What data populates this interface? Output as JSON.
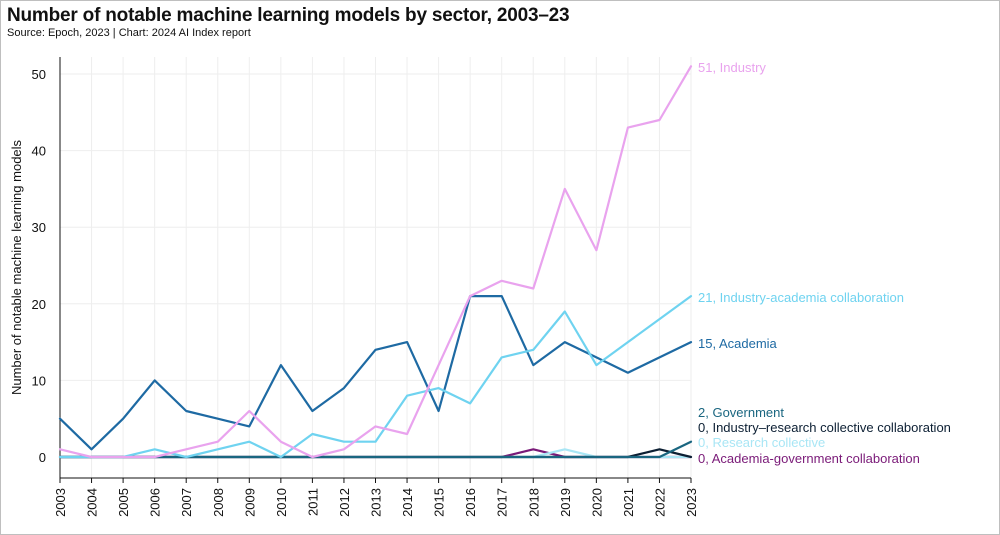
{
  "title": "Number of notable machine learning models by sector, 2003–23",
  "subtitle": "Source: Epoch, 2023 | Chart: 2024 AI Index report",
  "chart_data": {
    "type": "line",
    "ylabel": "Number of notable machine learning models",
    "xlabel": "",
    "ylim": [
      0,
      52
    ],
    "yticks": [
      0,
      10,
      20,
      30,
      40,
      50
    ],
    "x": [
      "2003",
      "2004",
      "2005",
      "2006",
      "2007",
      "2008",
      "2009",
      "2010",
      "2011",
      "2012",
      "2013",
      "2014",
      "2015",
      "2016",
      "2017",
      "2018",
      "2019",
      "2020",
      "2021",
      "2022",
      "2023"
    ],
    "grid": true,
    "legend": "end-labels",
    "series": [
      {
        "name": "Industry",
        "end_label": "51, Industry",
        "color": "#e9a3ee",
        "values": [
          1,
          0,
          0,
          0,
          1,
          2,
          6,
          2,
          0,
          1,
          4,
          3,
          12,
          21,
          23,
          22,
          35,
          27,
          43,
          44,
          51
        ]
      },
      {
        "name": "Industry-academia collaboration",
        "end_label": "21, Industry-academia collaboration",
        "color": "#6fd3f0",
        "values": [
          0,
          0,
          0,
          1,
          0,
          1,
          2,
          0,
          3,
          2,
          2,
          8,
          9,
          7,
          13,
          14,
          19,
          12,
          15,
          18,
          21
        ]
      },
      {
        "name": "Academia",
        "end_label": "15, Academia",
        "color": "#1e6aa3",
        "values": [
          5,
          1,
          5,
          10,
          6,
          5,
          4,
          12,
          6,
          9,
          14,
          15,
          6,
          21,
          21,
          12,
          15,
          13,
          11,
          13,
          15
        ]
      },
      {
        "name": "Government",
        "end_label": "2, Government",
        "color": "#1a6680",
        "values": [
          0,
          0,
          0,
          0,
          0,
          0,
          0,
          0,
          0,
          0,
          0,
          0,
          0,
          0,
          0,
          0,
          0,
          0,
          0,
          0,
          2
        ]
      },
      {
        "name": "Industry–research collective collaboration",
        "end_label": "0, Industry–research collective collaboration",
        "color": "#0c1f33",
        "values": [
          0,
          0,
          0,
          0,
          0,
          0,
          0,
          0,
          0,
          0,
          0,
          0,
          0,
          0,
          0,
          0,
          0,
          0,
          0,
          1,
          0
        ]
      },
      {
        "name": "Research collective",
        "end_label": "0, Research collective",
        "color": "#a9e6f5",
        "values": [
          0,
          0,
          0,
          0,
          0,
          0,
          0,
          0,
          0,
          0,
          0,
          0,
          0,
          0,
          0,
          0,
          1,
          0,
          0,
          0,
          0
        ]
      },
      {
        "name": "Academia-government collaboration",
        "end_label": "0, Academia-government collaboration",
        "color": "#7a1a78",
        "values": [
          0,
          0,
          0,
          0,
          0,
          0,
          0,
          0,
          0,
          0,
          0,
          0,
          0,
          0,
          0,
          1,
          0,
          0,
          0,
          0,
          0
        ]
      }
    ]
  }
}
